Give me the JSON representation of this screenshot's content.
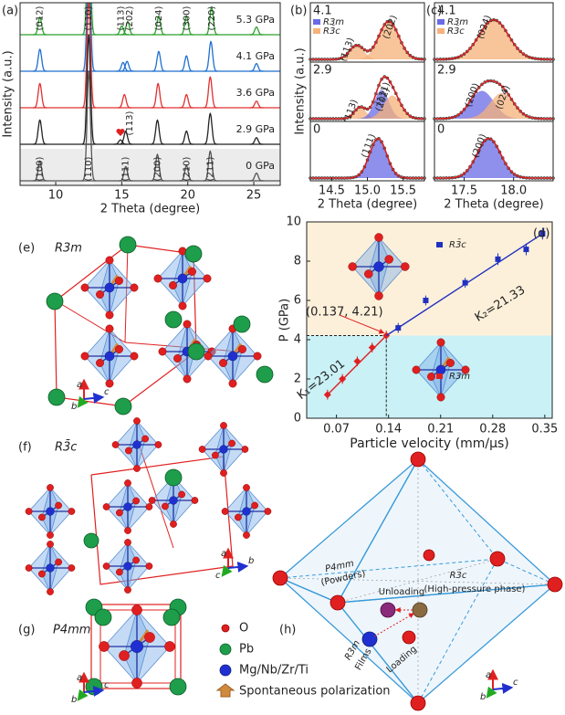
{
  "chart_data": [
    {
      "type": "xrd",
      "panel": "(a)",
      "xlabel": "2 Theta (degree)",
      "ylabel": "Intensity (a.u.)",
      "xlim": [
        7.3,
        27
      ],
      "xticks": [
        10,
        15,
        20,
        25
      ],
      "series": [
        {
          "name": "5.3 GPa",
          "color": "#2ca02c",
          "x": [
            8.8,
            12.5,
            15.0,
            15.45,
            17.8,
            19.9,
            21.8,
            25.2
          ],
          "values": [
            0.16,
            1,
            0.08,
            0.12,
            0.17,
            0.17,
            0.25,
            0.07
          ]
        },
        {
          "name": "4.1 GPa",
          "color": "#1f6fd0",
          "x": [
            8.8,
            12.5,
            15.1,
            15.4,
            17.8,
            19.9,
            21.75,
            25.2
          ],
          "values": [
            0.2,
            1,
            0.08,
            0.09,
            0.18,
            0.14,
            0.27,
            0.07
          ]
        },
        {
          "name": "3.6 GPa",
          "color": "#e03030",
          "x": [
            8.8,
            12.5,
            15.2,
            17.75,
            19.9,
            21.7,
            25.2
          ],
          "values": [
            0.22,
            1,
            0.12,
            0.22,
            0.12,
            0.28,
            0.06
          ]
        },
        {
          "name": "2.9 GPa",
          "color": "#222222",
          "x": [
            8.8,
            12.5,
            14.9,
            15.3,
            17.7,
            19.9,
            21.7,
            25.2
          ],
          "values": [
            0.22,
            1,
            0.04,
            0.12,
            0.22,
            0.12,
            0.28,
            0.06
          ]
        },
        {
          "name": "0 GPa",
          "color": "#555555",
          "x": [
            8.8,
            12.5,
            15.3,
            17.7,
            19.9,
            21.7,
            25.2
          ],
          "values": [
            0.18,
            1,
            0.13,
            0.24,
            0.14,
            0.27,
            0.07
          ]
        }
      ],
      "top_labels": [
        {
          "text": "(012)",
          "x": 8.8
        },
        {
          "text": "(110)",
          "x": 12.5
        },
        {
          "text": "(113)",
          "x": 14.95
        },
        {
          "text": "(202)",
          "x": 15.6
        },
        {
          "text": "(024)",
          "x": 17.8
        },
        {
          "text": "(300)",
          "x": 19.9
        },
        {
          "text": "(220)",
          "x": 21.8
        }
      ],
      "top_label_color": "#e02020",
      "bottom_labels": [
        {
          "text": "(100)",
          "x": 8.8
        },
        {
          "text": "(110)",
          "x": 12.5
        },
        {
          "text": "(111)",
          "x": 15.3
        },
        {
          "text": "(200)",
          "x": 17.7
        },
        {
          "text": "(210)",
          "x": 19.9
        },
        {
          "text": "(211)",
          "x": 21.7
        }
      ],
      "bottom_label_color": "#2a2ad0",
      "marker_label": {
        "text": "(113)",
        "x": 14.9
      }
    },
    {
      "type": "fit",
      "panel": "(b)",
      "xlabel": "2 Theta (degree)",
      "ylabel": "Intensity (a.u.)",
      "xlim": [
        14.2,
        15.8
      ],
      "xticks": [
        14.5,
        {
          "value": 15,
          "label": "15.0"
        },
        15.5
      ],
      "phases": [
        {
          "name": "R3m",
          "color": "#6a6ae6"
        },
        {
          "name": "R3̄c",
          "color": "#f6b27a"
        }
      ],
      "panels": [
        {
          "label": "4.1",
          "components": [
            {
              "label": "(113)",
              "label_color": "#e02020",
              "color": "#f6b27a",
              "center": 14.85,
              "height": 0.3,
              "sigma": 0.1
            },
            {
              "label": "(202)",
              "label_color": "#e02020",
              "color": "#f6b27a",
              "center": 15.3,
              "height": 0.82,
              "sigma": 0.14
            }
          ]
        },
        {
          "label": "2.9",
          "components": [
            {
              "label": "(113)",
              "label_color": "#e02020",
              "color": "#f6b27a",
              "center": 14.9,
              "height": 0.25,
              "sigma": 0.08
            },
            {
              "label": "(111)",
              "label_color": "#2a2ad0",
              "color": "#6a6ae6",
              "center": 15.2,
              "height": 0.62,
              "sigma": 0.1
            },
            {
              "label": "(202)",
              "label_color": "#e02020",
              "color": "#f6b27a",
              "center": 15.35,
              "height": 0.5,
              "sigma": 0.12
            }
          ]
        },
        {
          "label": "0",
          "components": [
            {
              "label": "(111)",
              "label_color": "#2a2ad0",
              "color": "#6a6ae6",
              "center": 15.15,
              "height": 0.85,
              "sigma": 0.12
            }
          ]
        }
      ]
    },
    {
      "type": "fit",
      "panel": "(c)",
      "xlabel": "2 Theta (degree)",
      "xlim": [
        17.2,
        18.4
      ],
      "xticks": [
        17.5,
        {
          "value": 18,
          "label": "18.0"
        }
      ],
      "phases": [
        {
          "name": "R3m",
          "color": "#6a6ae6"
        },
        {
          "name": "R3̄c",
          "color": "#f6b27a"
        }
      ],
      "panels": [
        {
          "label": "4.1",
          "components": [
            {
              "label": "(024)",
              "label_color": "#e02020",
              "color": "#f6b27a",
              "center": 17.8,
              "height": 0.85,
              "sigma": 0.15
            }
          ]
        },
        {
          "label": "2.9",
          "components": [
            {
              "label": "(200)",
              "label_color": "#2a2ad0",
              "color": "#6a6ae6",
              "center": 17.68,
              "height": 0.6,
              "sigma": 0.12
            },
            {
              "label": "(024)",
              "label_color": "#e02020",
              "color": "#f6b27a",
              "center": 17.88,
              "height": 0.55,
              "sigma": 0.12
            }
          ]
        },
        {
          "label": "0",
          "components": [
            {
              "label": "(200)",
              "label_color": "#2a2ad0",
              "color": "#6a6ae6",
              "center": 17.75,
              "height": 0.85,
              "sigma": 0.12
            }
          ]
        }
      ]
    },
    {
      "type": "scatter",
      "panel": "(d)",
      "xlabel": "Particle velocity (mm/μs)",
      "ylabel": "P (GPa)",
      "xlim": [
        0.03,
        0.36
      ],
      "xticks": [
        0.07,
        0.14,
        0.21,
        0.28,
        0.35
      ],
      "ylim": [
        0,
        10
      ],
      "yticks": [
        0,
        2,
        4,
        6,
        8,
        10
      ],
      "series": [
        {
          "name": "R3m",
          "color": "#e02020",
          "x": [
            0.058,
            0.078,
            0.098,
            0.118,
            0.137
          ],
          "values": [
            1.2,
            2.0,
            2.9,
            3.6,
            4.21
          ],
          "errors": [
            0.25,
            0.25,
            0.25,
            0.25,
            0.25
          ]
        },
        {
          "name": "R3̄c",
          "color": "#2030c0",
          "x": [
            0.153,
            0.19,
            0.243,
            0.287,
            0.325,
            0.347
          ],
          "values": [
            4.6,
            6.0,
            6.9,
            8.1,
            8.6,
            9.4
          ],
          "errors": [
            0.25,
            0.25,
            0.25,
            0.3,
            0.3,
            0.3
          ]
        }
      ],
      "transition": {
        "label": "(0.137, 4.21)",
        "x": 0.137,
        "y": 4.21
      },
      "fits": [
        {
          "label": "K₁=23.01",
          "color": "#e02020"
        },
        {
          "label": "K₂=21.33",
          "color": "#2030c0"
        }
      ],
      "regions": {
        "below": "#c9f1f6",
        "above": "#fdf0da"
      }
    }
  ],
  "figure": {
    "e": {
      "label": "(e)",
      "phase": "R3m",
      "axes": [
        "a",
        "b",
        "c"
      ]
    },
    "f": {
      "label": "(f)",
      "phase": "R3̄c",
      "axes": [
        "a",
        "c",
        "b"
      ]
    },
    "g": {
      "label": "(g)",
      "phase": "P4mm",
      "axes": [
        "a",
        "b",
        "c"
      ]
    },
    "legend": [
      "O",
      "Pb",
      "Mg/Nb/Zr/Ti",
      "Spontaneous polarization"
    ],
    "h": {
      "label": "(h)",
      "p4mm": "P4mm",
      "powders": "(Powders)",
      "unloading": "Unloading",
      "r3c": "R3̄c",
      "hp": "(High-pressure phase)",
      "r3m": "R3m",
      "films": "Films",
      "loading": "Loading",
      "axes": [
        "a",
        "b",
        "c"
      ]
    }
  }
}
